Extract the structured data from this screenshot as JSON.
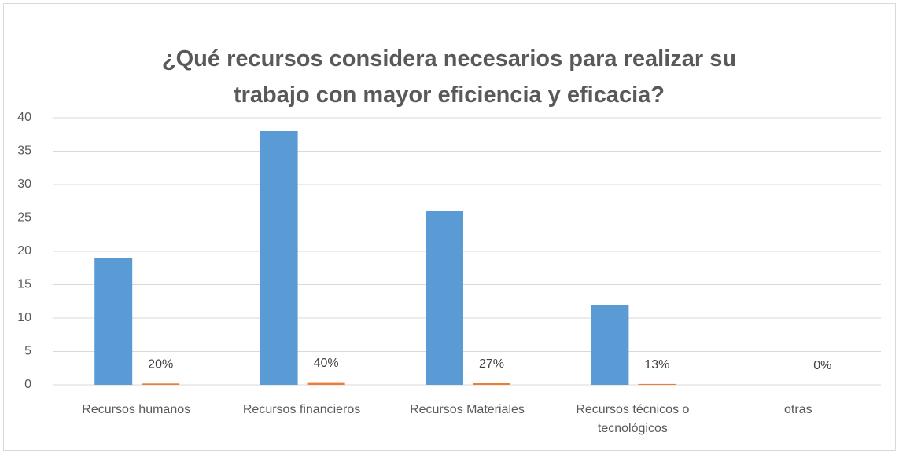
{
  "chart_data": {
    "type": "bar",
    "title": "¿Qué recursos  considera necesarios para realizar su trabajo con mayor eficiencia y eficacia?",
    "categories": [
      "Recursos humanos",
      "Recursos financieros",
      "Recursos  Materiales",
      "Recursos técnicos o tecnológicos",
      "otras"
    ],
    "series": [
      {
        "color": "#5b9bd5",
        "values": [
          19,
          38,
          26,
          12,
          0
        ]
      },
      {
        "color": "#ed7d31",
        "values": [
          0.2,
          0.4,
          0.27,
          0.13,
          0
        ],
        "value_labels": [
          "20%",
          "40%",
          "27%",
          "13%",
          "0%"
        ]
      }
    ],
    "ylim": [
      0,
      40
    ],
    "yticks": [
      0,
      5,
      10,
      15,
      20,
      25,
      30,
      35,
      40
    ],
    "grid": true
  }
}
